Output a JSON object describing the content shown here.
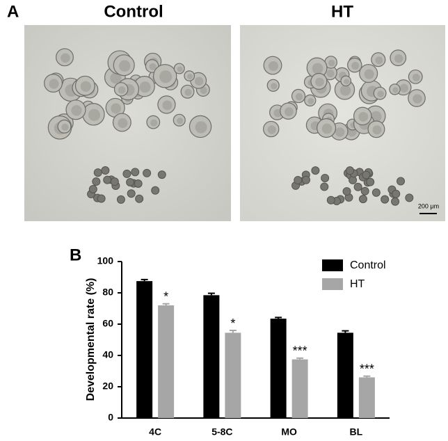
{
  "panel_a": {
    "label": "A",
    "images": [
      {
        "title": "Control"
      },
      {
        "title": "HT",
        "scale_bar": "200 μm"
      }
    ]
  },
  "panel_b": {
    "label": "B"
  },
  "chart_data": {
    "type": "bar",
    "y_label": "Developmental rate (%)",
    "categories": [
      "4C",
      "5-8C",
      "MO",
      "BL"
    ],
    "series": [
      {
        "name": "Control",
        "color": "#000000",
        "values": [
          87.5,
          78.5,
          63.5,
          54.5
        ],
        "errors": [
          1,
          1.2,
          0.8,
          1.2
        ]
      },
      {
        "name": "HT",
        "color": "#a6a6a6",
        "values": [
          72,
          54.5,
          37.5,
          26
        ],
        "errors": [
          1,
          1.5,
          0.8,
          0.8
        ],
        "annotations": [
          "*",
          "*",
          "***",
          "***"
        ]
      }
    ],
    "ylim": [
      0,
      100
    ],
    "yticks": [
      0,
      20,
      40,
      60,
      80,
      100
    ],
    "grid": false,
    "legend": "top-right"
  }
}
